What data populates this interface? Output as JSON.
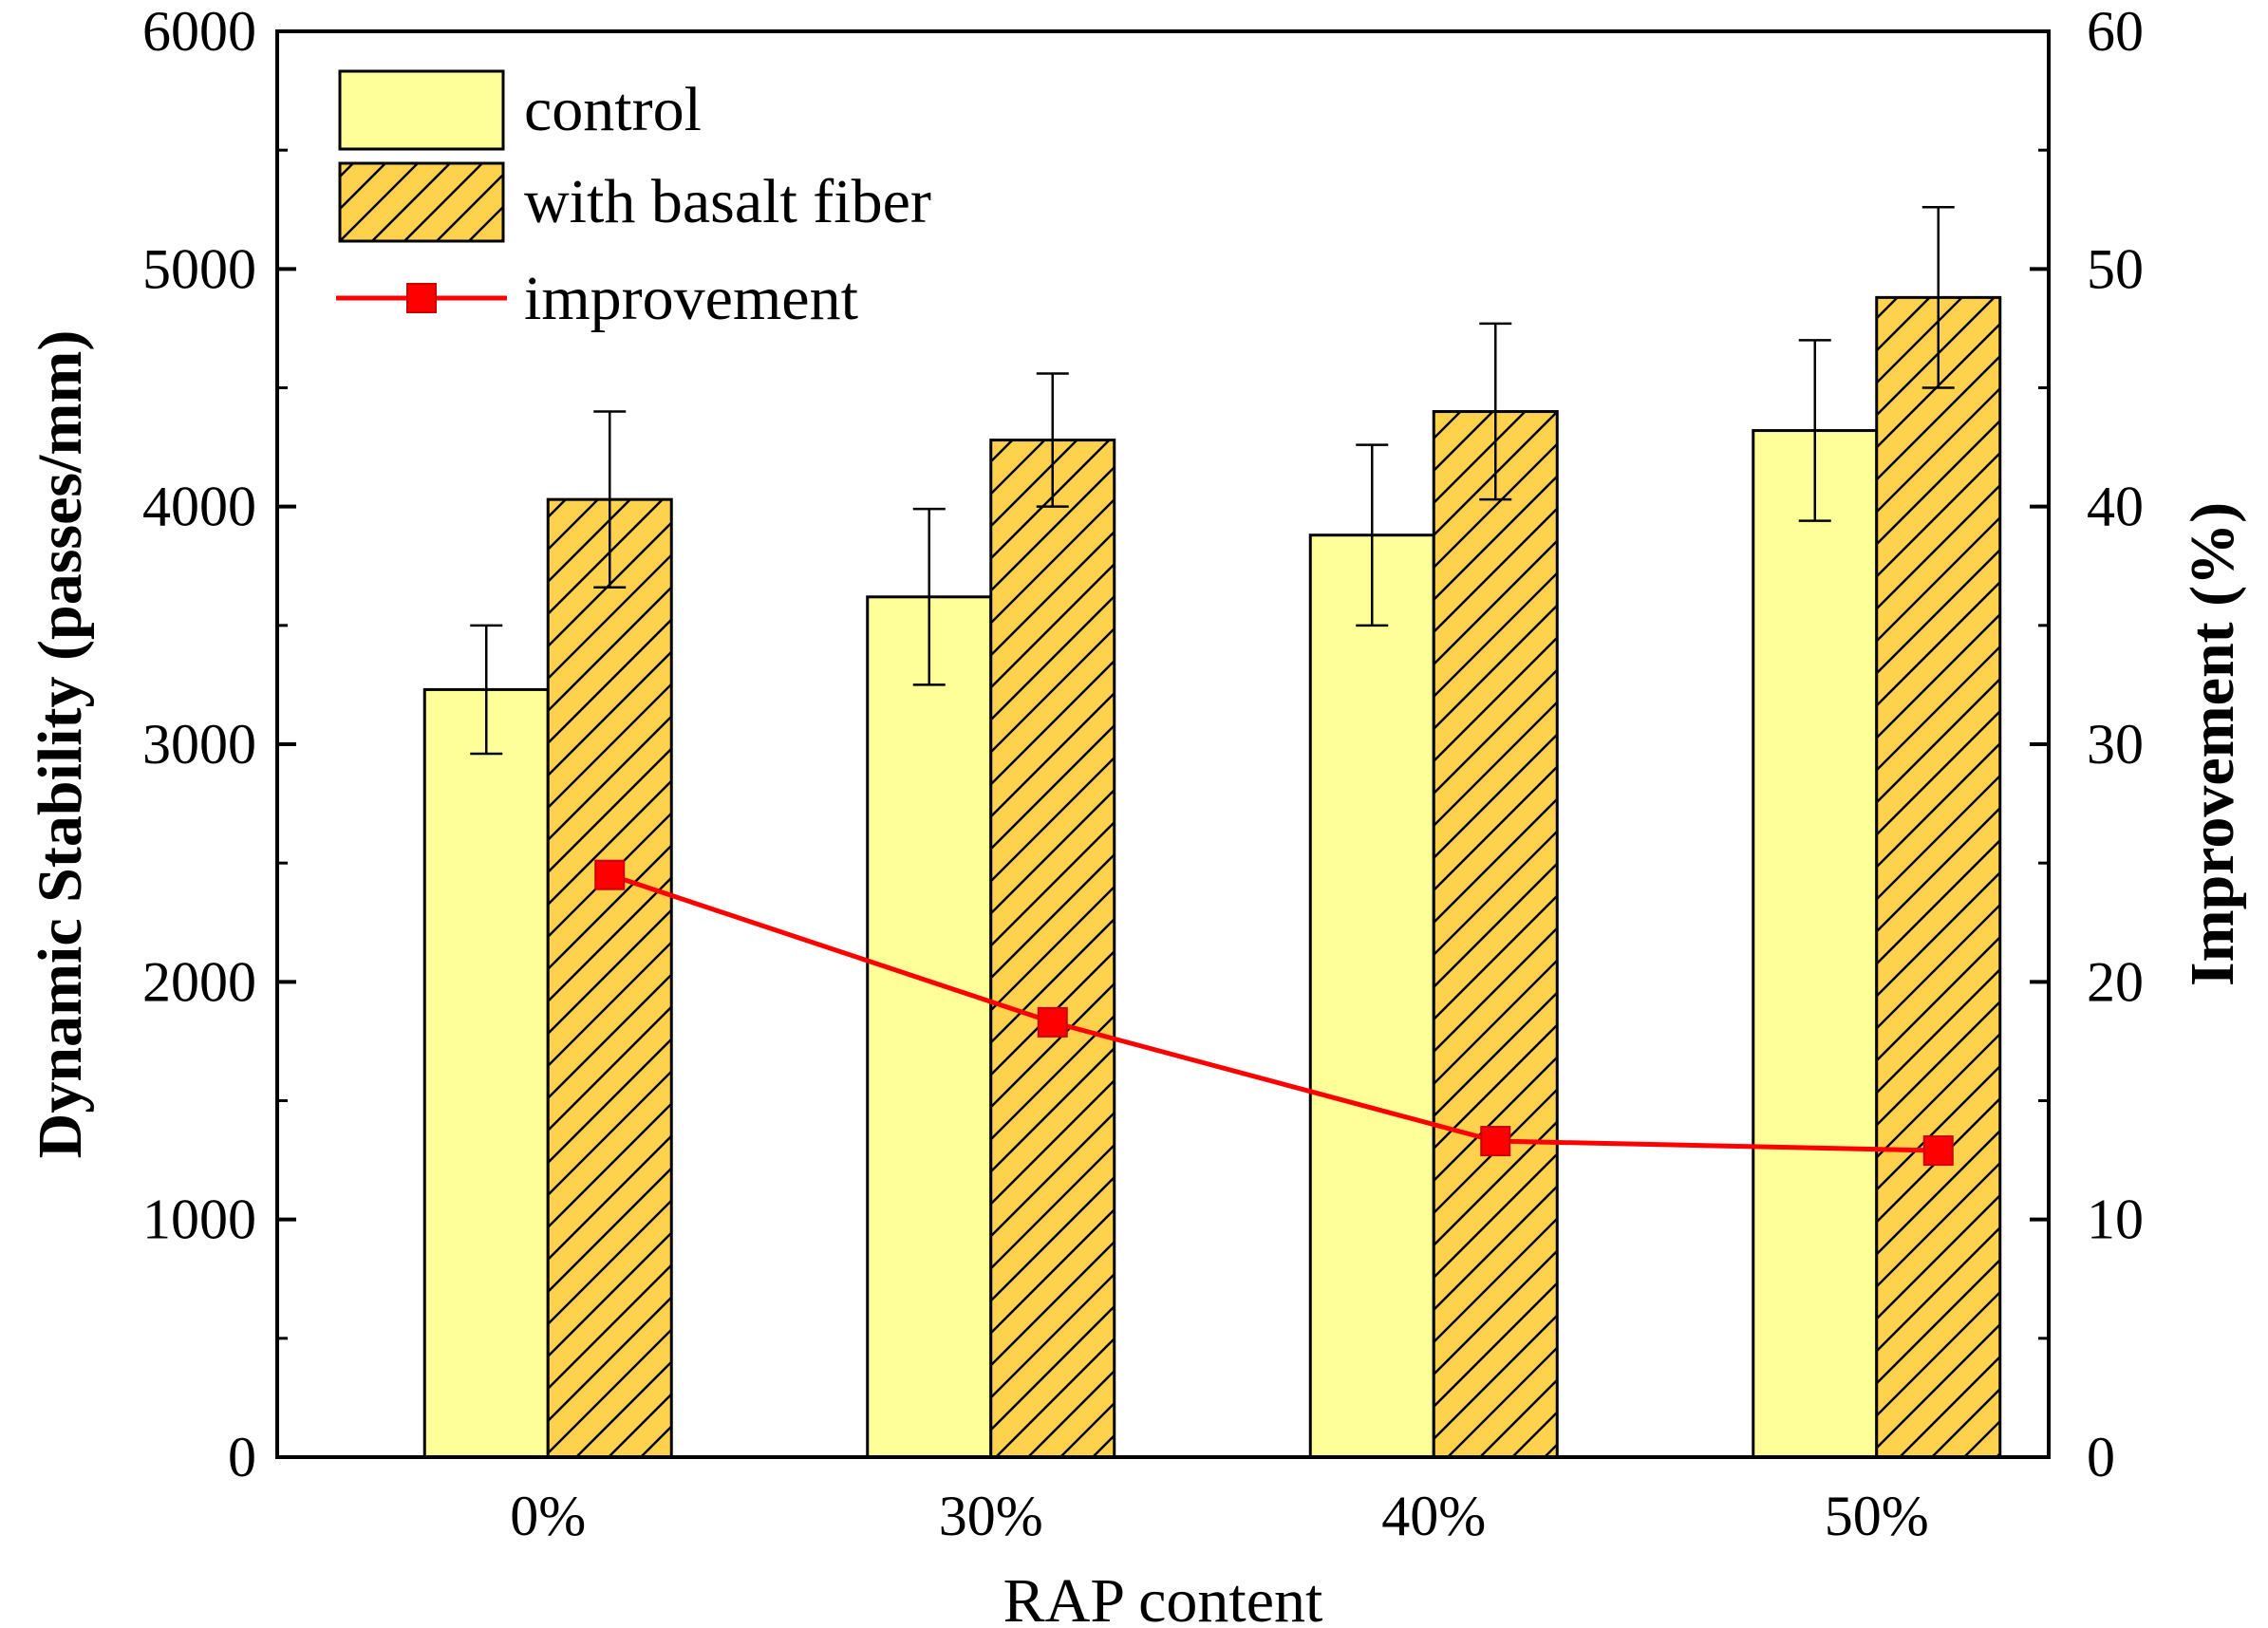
{
  "chart_data": {
    "type": "bar",
    "categories": [
      "0%",
      "30%",
      "40%",
      "50%"
    ],
    "xlabel": "RAP content",
    "ylabel": "Dynamic Stability (passes/mm)",
    "ylabel_right": "Improvement (%)",
    "ylim": [
      0,
      6000
    ],
    "ylim_right": [
      0,
      60
    ],
    "yticks": [
      "0",
      "1000",
      "2000",
      "3000",
      "4000",
      "5000",
      "6000"
    ],
    "yticks_right": [
      "0",
      "10",
      "20",
      "30",
      "40",
      "50",
      "60"
    ],
    "series": [
      {
        "name": "control",
        "kind": "bar",
        "values": [
          3230,
          3620,
          3880,
          4320
        ],
        "errors": [
          270,
          370,
          380,
          380
        ],
        "color": "#ffff99",
        "pattern": "none"
      },
      {
        "name": "with basalt fiber",
        "kind": "bar",
        "values": [
          4030,
          4280,
          4400,
          4880
        ],
        "errors": [
          370,
          280,
          370,
          380
        ],
        "color": "#ffd24d",
        "pattern": "hatch"
      },
      {
        "name": "improvement",
        "kind": "line",
        "axis": "right",
        "values": [
          24.5,
          18.3,
          13.3,
          12.9
        ],
        "color": "#ff0000",
        "marker": "square"
      }
    ],
    "legend": {
      "position": "top-left",
      "entries": [
        "control",
        "with basalt fiber",
        "improvement"
      ]
    }
  }
}
